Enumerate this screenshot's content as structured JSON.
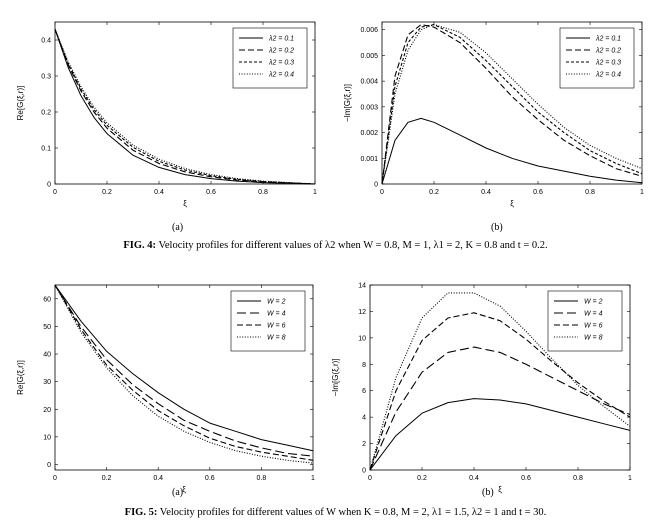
{
  "figures": [
    {
      "caption_prefix": "FIG. 4:",
      "caption_text": "Velocity profiles for different values of λ2 when W = 0.8, M = 1, λ1 = 2, K = 0.8 and t = 0.2.",
      "sub_a": "(a)",
      "sub_b": "(b)"
    },
    {
      "caption_prefix": "FIG. 5:",
      "caption_text": "Velocity profiles for different values of W when K = 0.8, M = 2, λ1 = 1.5, λ2 = 1 and t = 30.",
      "sub_a": "(a)",
      "sub_b": "(b)"
    }
  ],
  "chart_data": [
    {
      "type": "line",
      "xlabel": "ξ",
      "ylabel": "Re[G(ξ,r)]",
      "xlim": [
        0,
        1
      ],
      "ylim": [
        0,
        0.45
      ],
      "xticks": [
        "0",
        "0.2",
        "0.4",
        "0.6",
        "0.8",
        "1"
      ],
      "yticks": [
        "0",
        "0.1",
        "0.2",
        "0.3",
        "0.4"
      ],
      "legend_position": "top-right",
      "x": [
        0,
        0.05,
        0.1,
        0.15,
        0.2,
        0.3,
        0.4,
        0.5,
        0.6,
        0.7,
        0.8,
        0.9,
        1.0
      ],
      "series": [
        {
          "name": "λ2 = 0.1",
          "style": "solid",
          "values": [
            0.43,
            0.325,
            0.245,
            0.185,
            0.14,
            0.08,
            0.046,
            0.026,
            0.015,
            0.008,
            0.004,
            0.002,
            0.0
          ]
        },
        {
          "name": "λ2 = 0.2",
          "style": "dashed",
          "values": [
            0.43,
            0.332,
            0.258,
            0.2,
            0.155,
            0.094,
            0.057,
            0.034,
            0.02,
            0.011,
            0.006,
            0.003,
            0.0
          ]
        },
        {
          "name": "λ2 = 0.3",
          "style": "dashdense",
          "values": [
            0.43,
            0.336,
            0.264,
            0.207,
            0.163,
            0.102,
            0.063,
            0.039,
            0.023,
            0.013,
            0.007,
            0.003,
            0.0
          ]
        },
        {
          "name": "λ2 = 0.4",
          "style": "dotted",
          "values": [
            0.43,
            0.34,
            0.27,
            0.214,
            0.17,
            0.108,
            0.069,
            0.043,
            0.026,
            0.015,
            0.008,
            0.004,
            0.0
          ]
        }
      ]
    },
    {
      "type": "line",
      "xlabel": "ξ",
      "ylabel": "−Im[G(ξ,r)]",
      "xlim": [
        0,
        1
      ],
      "ylim": [
        0,
        0.0063
      ],
      "xticks": [
        "0",
        "0.2",
        "0.4",
        "0.6",
        "0.8",
        "1"
      ],
      "yticks": [
        "0",
        "0.001",
        "0.002",
        "0.003",
        "0.004",
        "0.005",
        "0.006"
      ],
      "legend_position": "top-right",
      "x": [
        0,
        0.05,
        0.1,
        0.15,
        0.2,
        0.3,
        0.4,
        0.5,
        0.6,
        0.7,
        0.8,
        0.9,
        1.0
      ],
      "series": [
        {
          "name": "λ2 = 0.1",
          "style": "solid",
          "values": [
            0,
            0.0017,
            0.0024,
            0.00255,
            0.0024,
            0.0019,
            0.0014,
            0.001,
            0.0007,
            0.0005,
            0.0003,
            0.00015,
            5e-05
          ]
        },
        {
          "name": "λ2 = 0.2",
          "style": "dashed",
          "values": [
            0,
            0.0042,
            0.0058,
            0.0062,
            0.0061,
            0.0055,
            0.0045,
            0.0034,
            0.0025,
            0.0017,
            0.0011,
            0.0006,
            0.0003
          ]
        },
        {
          "name": "λ2 = 0.3",
          "style": "dashdense",
          "values": [
            0,
            0.0038,
            0.0055,
            0.0061,
            0.0062,
            0.0057,
            0.0048,
            0.0038,
            0.0028,
            0.002,
            0.0013,
            0.0008,
            0.0004
          ]
        },
        {
          "name": "λ2 = 0.4",
          "style": "dotted",
          "values": [
            0,
            0.0035,
            0.0052,
            0.006,
            0.0062,
            0.0059,
            0.0051,
            0.0041,
            0.0031,
            0.0022,
            0.0015,
            0.001,
            0.0006
          ]
        }
      ]
    },
    {
      "type": "line",
      "xlabel": "ξ",
      "ylabel": "Re[G(ξ,r)]",
      "xlim": [
        0,
        1
      ],
      "ylim": [
        -2,
        65
      ],
      "xticks": [
        "0",
        "0.2",
        "0.4",
        "0.6",
        "0.8",
        "1"
      ],
      "yticks": [
        "0",
        "10",
        "20",
        "30",
        "40",
        "50",
        "60"
      ],
      "legend_position": "top-right",
      "x": [
        0,
        0.1,
        0.2,
        0.3,
        0.4,
        0.5,
        0.6,
        0.7,
        0.8,
        0.9,
        1.0
      ],
      "series": [
        {
          "name": "W = 2",
          "style": "solid",
          "values": [
            65,
            52,
            41,
            33,
            26,
            20,
            15,
            12,
            9,
            7,
            5
          ]
        },
        {
          "name": "W = 4",
          "style": "longdash",
          "values": [
            65,
            50,
            38,
            29,
            22,
            16,
            12,
            8.5,
            6,
            4,
            3
          ]
        },
        {
          "name": "W = 6",
          "style": "dashed",
          "values": [
            65,
            49,
            36,
            27,
            19.5,
            14,
            9.5,
            6.5,
            4.5,
            3,
            1.5
          ]
        },
        {
          "name": "W = 8",
          "style": "dotted",
          "values": [
            65,
            48,
            35,
            25,
            17.5,
            12,
            8,
            5,
            3,
            1.5,
            0.5
          ]
        }
      ]
    },
    {
      "type": "line",
      "xlabel": "ξ",
      "ylabel": "−Im[G(ξ,r)]",
      "xlim": [
        0,
        1
      ],
      "ylim": [
        0,
        14
      ],
      "xticks": [
        "0",
        "0.2",
        "0.4",
        "0.6",
        "0.8",
        "1"
      ],
      "yticks": [
        "0",
        "2",
        "4",
        "6",
        "8",
        "10",
        "12",
        "14"
      ],
      "legend_position": "top-right",
      "x": [
        0,
        0.1,
        0.2,
        0.3,
        0.4,
        0.5,
        0.6,
        0.7,
        0.8,
        0.9,
        1.0
      ],
      "series": [
        {
          "name": "W = 2",
          "style": "solid",
          "values": [
            0,
            2.6,
            4.3,
            5.1,
            5.4,
            5.3,
            5.0,
            4.5,
            4.0,
            3.5,
            3.0
          ]
        },
        {
          "name": "W = 4",
          "style": "longdash",
          "values": [
            0,
            4.4,
            7.4,
            8.9,
            9.3,
            8.9,
            8.0,
            7.0,
            6.0,
            5.0,
            4.2
          ]
        },
        {
          "name": "W = 6",
          "style": "dashed",
          "values": [
            0,
            6.0,
            9.8,
            11.5,
            11.9,
            11.3,
            9.9,
            8.2,
            6.6,
            5.2,
            4.0
          ]
        },
        {
          "name": "W = 8",
          "style": "dotted",
          "values": [
            0,
            7.0,
            11.5,
            13.4,
            13.4,
            12.4,
            10.5,
            8.4,
            6.4,
            4.8,
            3.3
          ]
        }
      ]
    }
  ]
}
